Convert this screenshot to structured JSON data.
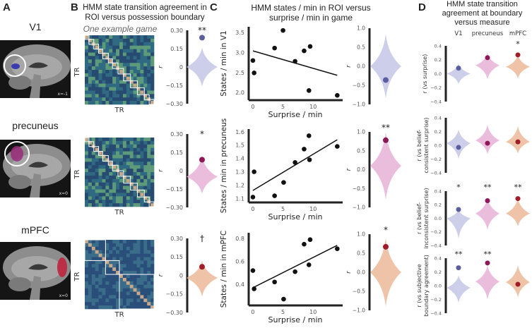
{
  "panels": {
    "A": {
      "label": "A",
      "rois": [
        "V1",
        "precuneus",
        "mPFC"
      ],
      "slice_labels": [
        "x=-1",
        "x=0",
        "x=0"
      ]
    },
    "B": {
      "label": "B",
      "title_line1": "HMM state transition agreement in",
      "title_line2": "ROI versus possession boundary",
      "subtitle": "One example game",
      "axis_tr": "TR",
      "r_label": "r"
    },
    "C": {
      "label": "C",
      "title_line1": "HMM states / min in ROI versus",
      "title_line2": "surprise / min in game",
      "xlabel": "Surprise / min",
      "r_label": "r"
    },
    "D": {
      "label": "D",
      "title_line1": "HMM state transition",
      "title_line2": "agreement at boundary",
      "title_line3": "versus measure",
      "columns": [
        "V1",
        "precuneus",
        "mPFC"
      ]
    }
  },
  "colors": {
    "V1": {
      "violin": "#c7c9e8",
      "dot": "#5b5e9e"
    },
    "precuneus": {
      "violin": "#e9b6d9",
      "dot": "#8e1758"
    },
    "mPFC": {
      "violin": "#ecbc9d",
      "dot": "#a11c28"
    }
  },
  "chart_data": [
    {
      "type": "violin",
      "panel": "B",
      "ylabel": "r",
      "ylim": [
        -0.3,
        0.3
      ],
      "yticks": [
        "0.30",
        "0.15",
        "0",
        "−0.15",
        "−0.30"
      ],
      "rows": [
        {
          "roi": "V1",
          "observed_r": 0.24,
          "significance": "**",
          "null_range": [
            -0.16,
            0.16
          ],
          "null_mode": 0.0
        },
        {
          "roi": "precuneus",
          "observed_r": 0.09,
          "significance": "*",
          "null_range": [
            -0.19,
            0.12
          ],
          "null_mode": -0.05
        },
        {
          "roi": "mPFC",
          "observed_r": 0.07,
          "significance": "†",
          "null_range": [
            -0.17,
            0.12
          ],
          "null_mode": -0.02
        }
      ]
    },
    {
      "type": "scatter",
      "panel": "C",
      "xlabel": "Surprise / min",
      "xticks": [
        0,
        5,
        10
      ],
      "xlim": [
        -0.7,
        14.9
      ],
      "rows": [
        {
          "roi": "V1",
          "ylabel": "States / min in V1",
          "ylim": [
            1.81,
            3.64
          ],
          "yticks": [
            "3.5",
            "3.0",
            "2.5",
            "2.0"
          ],
          "ytick_values": [
            3.5,
            3.0,
            2.5,
            2.0
          ],
          "x": [
            0,
            0.2,
            3.6,
            5.0,
            7.0,
            8.5,
            9.3,
            9.5,
            14.0
          ],
          "y": [
            2.8,
            2.49,
            3.11,
            3.55,
            2.78,
            3.04,
            2.05,
            3.15,
            1.93
          ],
          "fit": [
            [
              0,
              3.04
            ],
            [
              14,
              2.43
            ]
          ]
        },
        {
          "roi": "precuneus",
          "ylabel": "States / min in precuneus",
          "ylim": [
            1.07,
            1.62
          ],
          "yticks": [
            "1.6",
            "1.5",
            "1.4",
            "1.3",
            "1.2",
            "1.1"
          ],
          "ytick_values": [
            1.6,
            1.5,
            1.4,
            1.3,
            1.2,
            1.1
          ],
          "x": [
            0,
            0.2,
            3.6,
            5.1,
            7.0,
            8.5,
            9.3,
            9.4,
            14.0
          ],
          "y": [
            1.11,
            1.3,
            1.12,
            1.22,
            1.37,
            1.47,
            1.57,
            1.39,
            1.49
          ],
          "fit": [
            [
              0,
              1.16
            ],
            [
              14,
              1.54
            ]
          ]
        },
        {
          "roi": "mPFC",
          "ylabel": "States / min in mPFC",
          "ylim": [
            0.215,
            0.85
          ],
          "yticks": [
            "0.8",
            "0.6",
            "0.4"
          ],
          "ytick_values": [
            0.8,
            0.6,
            0.4
          ],
          "x": [
            0,
            0.2,
            3.6,
            5.1,
            7.0,
            8.5,
            9.3,
            9.5,
            14.0
          ],
          "y": [
            0.52,
            0.36,
            0.42,
            0.27,
            0.51,
            0.75,
            0.57,
            0.79,
            0.71
          ],
          "fit": [
            [
              0,
              0.37
            ],
            [
              14,
              0.74
            ]
          ]
        }
      ]
    },
    {
      "type": "violin",
      "panel": "C",
      "ylabel": "r",
      "ylim": [
        -1.0,
        1.0
      ],
      "yticks": [
        "1.0",
        "0.5",
        "0.0",
        "−0.5",
        "−1.0"
      ],
      "rows": [
        {
          "roi": "V1",
          "observed_r": -0.36,
          "significance": "",
          "null_range": [
            -0.85,
            0.85
          ],
          "null_mode": 0.0
        },
        {
          "roi": "precuneus",
          "observed_r": 0.78,
          "significance": "**",
          "null_range": [
            -0.8,
            1.0
          ],
          "null_mode": 0.1
        },
        {
          "roi": "mPFC",
          "observed_r": 0.67,
          "significance": "*",
          "null_range": [
            -0.9,
            0.9
          ],
          "null_mode": 0.0
        }
      ]
    },
    {
      "type": "violin",
      "panel": "D",
      "ylim": [
        -0.4,
        0.4
      ],
      "yticks": [
        "0.4",
        "0.2",
        "0.0",
        "−0.2",
        "−0.4"
      ],
      "categories": [
        "V1",
        "precuneus",
        "mPFC"
      ],
      "rows": [
        {
          "ylabel_line1": "r (vs surprise)",
          "ylabel_line2": "",
          "observed_r": [
            0.08,
            0.23,
            0.27
          ],
          "significance": [
            "",
            "",
            "*"
          ],
          "null_mode": [
            0.0,
            0.12,
            0.1
          ],
          "null_range": [
            [
              -0.15,
              0.15
            ],
            [
              -0.08,
              0.3
            ],
            [
              -0.07,
              0.27
            ]
          ]
        },
        {
          "ylabel_line1": "r (vs belief-",
          "ylabel_line2": "consistent surprise)",
          "observed_r": [
            -0.03,
            0.03,
            0.05
          ],
          "significance": [
            "",
            "",
            ""
          ],
          "null_mode": [
            0.03,
            0.07,
            0.05
          ],
          "null_range": [
            [
              -0.2,
              0.23
            ],
            [
              -0.13,
              0.3
            ],
            [
              -0.12,
              0.28
            ]
          ]
        },
        {
          "ylabel_line1": "r (vs belief-",
          "ylabel_line2": "inconsistent surprise)",
          "observed_r": [
            0.13,
            0.26,
            0.29
          ],
          "significance": [
            "*",
            "**",
            "**"
          ],
          "null_mode": [
            0.0,
            0.07,
            0.07
          ],
          "null_range": [
            [
              -0.3,
              0.13
            ],
            [
              -0.17,
              0.3
            ],
            [
              -0.12,
              0.3
            ]
          ]
        },
        {
          "ylabel_line1": "r (vs subjective",
          "ylabel_line2": "boundary agreement)",
          "observed_r": [
            0.26,
            0.33,
            0.02
          ],
          "significance": [
            "**",
            "**",
            ""
          ],
          "null_mode": [
            -0.03,
            0.06,
            0.05
          ],
          "null_range": [
            [
              -0.25,
              0.15
            ],
            [
              -0.2,
              0.3
            ],
            [
              -0.17,
              0.3
            ]
          ]
        }
      ]
    }
  ]
}
